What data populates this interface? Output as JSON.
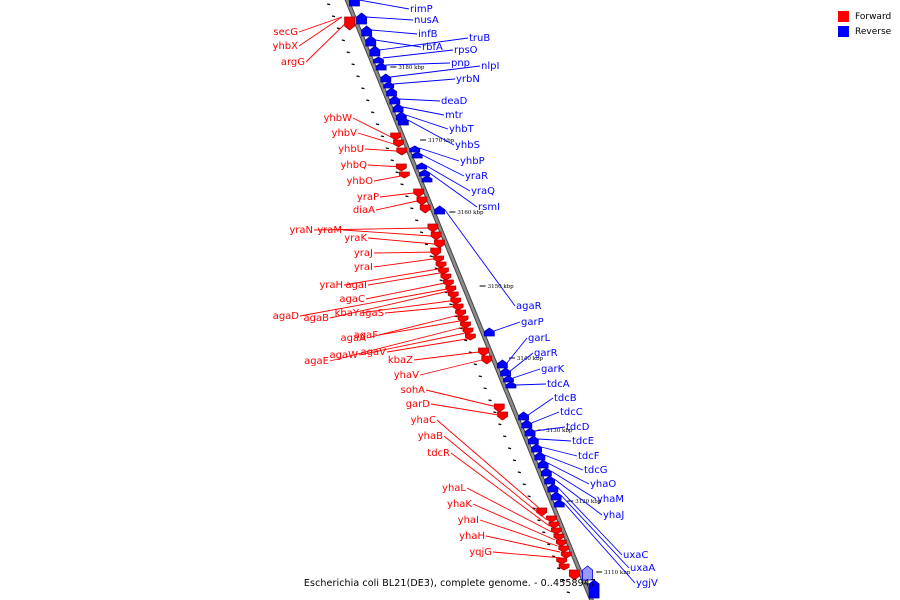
{
  "legend": {
    "forward_label": "Forward",
    "reverse_label": "Reverse",
    "forward_color": "#ff0000",
    "reverse_color": "#0000ff"
  },
  "colors": {
    "forward": "#ff0000",
    "forward_shade": "#b30000",
    "reverse": "#0000ff",
    "reverse_shade": "#0000aa",
    "backbone": "#8c8c8c",
    "backbone_edge": "#444444",
    "pale_reverse": "#9999ff"
  },
  "caption": "Escherichia coli BL21(DE3), complete genome. - 0..4558947",
  "scale_ticks": [
    "3180 kbp",
    "3170 kbp",
    "3160 kbp",
    "3150 kbp",
    "3140 kbp",
    "3130 kbp",
    "3120 kbp",
    "3110 kbp"
  ],
  "forward_genes": [
    "secG",
    "yhbX",
    "argG",
    "yhbW",
    "yhbV",
    "yhbU",
    "yhbQ",
    "yhbO",
    "yraP",
    "diaA",
    "yraN",
    "yraM",
    "yraK",
    "yraJ",
    "yraI",
    "yraH",
    "agaI",
    "agaC",
    "agaB",
    "agaD",
    "kbaY",
    "agaS",
    "agaA",
    "agaF",
    "agaE",
    "agaW",
    "agaV",
    "kbaZ",
    "yhaV",
    "sohA",
    "garD",
    "yhaC",
    "yhaB",
    "tdcR",
    "yhaL",
    "yhaK",
    "yhaI",
    "yhaH",
    "yqjG"
  ],
  "reverse_genes": [
    "rimP",
    "nusA",
    "infB",
    "rbfA",
    "truB",
    "rpsO",
    "pnp",
    "nlpI",
    "yrbN",
    "deaD",
    "mtr",
    "yhbT",
    "yhbS",
    "yhbP",
    "yraR",
    "yraQ",
    "rsmI",
    "agaR",
    "garP",
    "garL",
    "garR",
    "garK",
    "tdcA",
    "tdcB",
    "tdcC",
    "tdcD",
    "tdcE",
    "tdcF",
    "tdcG",
    "yhaO",
    "yhaM",
    "yhaJ",
    "uxaC",
    "uxaA",
    "ygjV"
  ]
}
